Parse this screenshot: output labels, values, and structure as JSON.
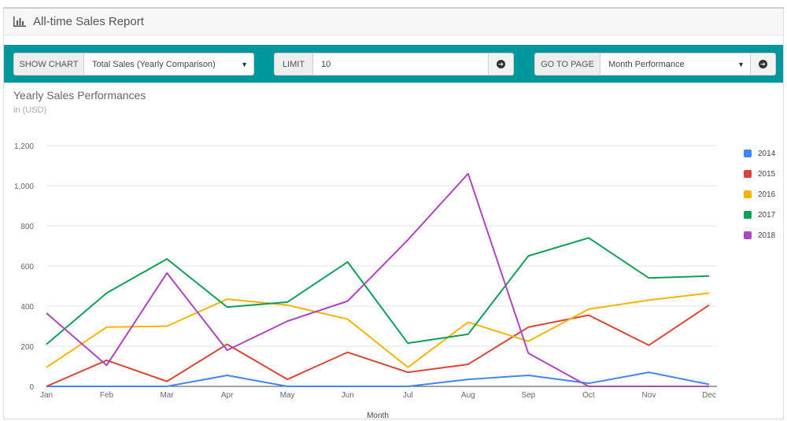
{
  "report": {
    "title": "All-time Sales Report",
    "icon": "bar-chart-icon"
  },
  "toolbar": {
    "show_chart_label": "SHOW CHART",
    "show_chart_value": "Total Sales (Yearly Comparison)",
    "limit_label": "LIMIT",
    "limit_value": "10",
    "go_to_page_label": "GO TO PAGE",
    "go_to_page_value": "Month Performance",
    "accent_color": "#00979c"
  },
  "chart_data": {
    "type": "line",
    "title": "Yearly Sales Performances",
    "subtitle": "in (USD)",
    "xlabel": "Month",
    "ylabel": "",
    "categories": [
      "Jan",
      "Feb",
      "Mar",
      "Apr",
      "May",
      "Jun",
      "Jul",
      "Aug",
      "Sep",
      "Oct",
      "Nov",
      "Dec"
    ],
    "ylim": [
      0,
      1200
    ],
    "yticks": [
      "0",
      "200",
      "400",
      "600",
      "800",
      "1,000",
      "1,200"
    ],
    "ytick_values": [
      0,
      200,
      400,
      600,
      800,
      1000,
      1200
    ],
    "grid": true,
    "legend_position": "right",
    "series": [
      {
        "name": "2014",
        "color": "#4285f4",
        "values": [
          0,
          0,
          0,
          55,
          0,
          0,
          0,
          35,
          55,
          15,
          70,
          10
        ]
      },
      {
        "name": "2015",
        "color": "#db4437",
        "values": [
          0,
          130,
          25,
          210,
          35,
          170,
          70,
          110,
          295,
          355,
          205,
          405
        ]
      },
      {
        "name": "2016",
        "color": "#f4b400",
        "values": [
          95,
          295,
          300,
          435,
          405,
          335,
          95,
          320,
          225,
          385,
          430,
          465
        ]
      },
      {
        "name": "2017",
        "color": "#0f9d58",
        "values": [
          210,
          465,
          635,
          395,
          420,
          620,
          215,
          260,
          650,
          740,
          540,
          550
        ]
      },
      {
        "name": "2018",
        "color": "#ab47bc",
        "values": [
          365,
          105,
          565,
          180,
          325,
          425,
          730,
          1060,
          165,
          0,
          0,
          0
        ]
      }
    ]
  }
}
